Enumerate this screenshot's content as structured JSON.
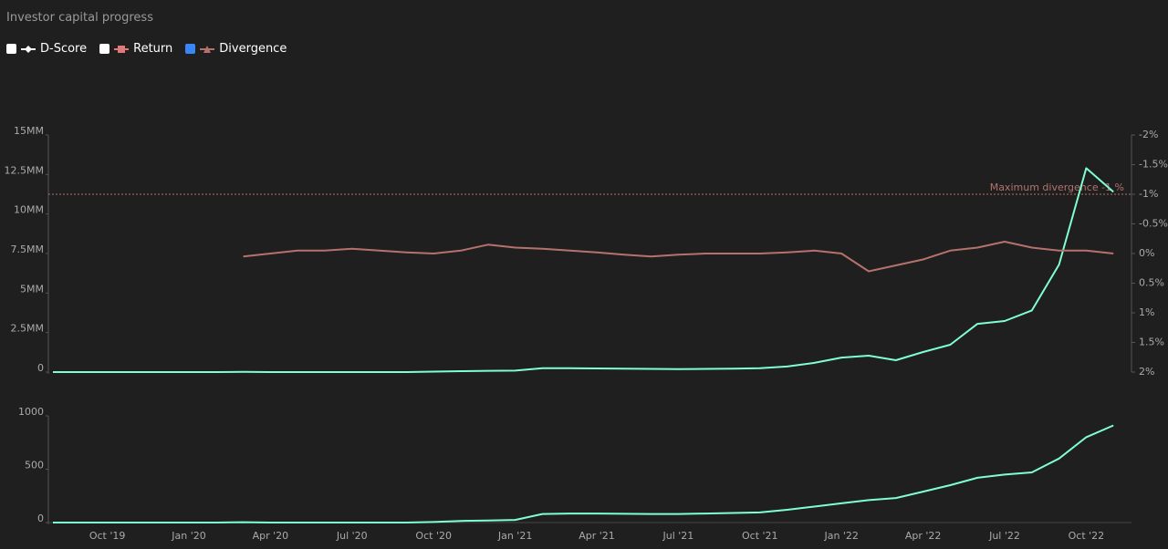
{
  "title": "Investor capital progress",
  "legend": [
    {
      "label": "D-Score",
      "checked": false,
      "color": "#ffffff"
    },
    {
      "label": "Return",
      "checked": false,
      "color": "#e07a7a"
    },
    {
      "label": "Divergence",
      "checked": true,
      "color": "#b5726c"
    }
  ],
  "chart_data": [
    {
      "type": "line",
      "ylim": [
        0,
        15000000
      ],
      "yticks": [
        {
          "value": 0,
          "label": "0"
        },
        {
          "value": 2500000,
          "label": "2.5MM"
        },
        {
          "value": 5000000,
          "label": "5MM"
        },
        {
          "value": 7500000,
          "label": "7.5MM"
        },
        {
          "value": 10000000,
          "label": "10MM"
        },
        {
          "value": 12500000,
          "label": "12.5MM"
        },
        {
          "value": 15000000,
          "label": "15MM"
        }
      ],
      "y2lim": [
        2,
        -2
      ],
      "y2ticks": [
        {
          "value": 2,
          "label": "2%"
        },
        {
          "value": 1.5,
          "label": "1.5%"
        },
        {
          "value": 1,
          "label": "1%"
        },
        {
          "value": 0.5,
          "label": "0.5%"
        },
        {
          "value": 0,
          "label": "0%"
        },
        {
          "value": -0.5,
          "label": "-0.5%"
        },
        {
          "value": -1,
          "label": "-1%"
        },
        {
          "value": -1.5,
          "label": "-1.5%"
        },
        {
          "value": -2,
          "label": "-2%"
        }
      ],
      "annotation": {
        "text": "Maximum divergence -1 %",
        "value": -1,
        "color": "#b5726c"
      },
      "series": [
        {
          "color": "#7fffd0",
          "values": [
            0,
            0,
            0,
            0,
            0,
            0,
            0,
            20000,
            0,
            0,
            0,
            0,
            0,
            0,
            30000,
            60000,
            80000,
            90000,
            250000,
            240000,
            230000,
            220000,
            200000,
            190000,
            200000,
            220000,
            250000,
            350000,
            580000,
            920000,
            1040000,
            750000,
            1270000,
            1730000,
            3050000,
            3230000,
            3900000,
            6800000,
            12900000,
            11400000
          ]
        },
        {
          "color": "#b5726c",
          "axis": "y2",
          "values": [
            null,
            null,
            null,
            null,
            null,
            null,
            null,
            0.05,
            0,
            -0.05,
            -0.05,
            -0.08,
            -0.05,
            -0.02,
            0,
            -0.05,
            -0.15,
            -0.1,
            -0.08,
            -0.05,
            -0.02,
            0.02,
            0.05,
            0.02,
            0,
            0,
            0,
            -0.02,
            -0.05,
            0,
            0.3,
            0.2,
            0.1,
            -0.05,
            -0.1,
            -0.2,
            -0.1,
            -0.05,
            -0.05,
            0
          ]
        }
      ]
    },
    {
      "type": "line",
      "ylim": [
        0,
        1000
      ],
      "yticks": [
        0,
        500,
        1000
      ],
      "categories": [
        null,
        null,
        "Oct '19",
        null,
        null,
        "Jan '20",
        null,
        null,
        "Apr '20",
        null,
        null,
        "Jul '20",
        null,
        null,
        "Oct '20",
        null,
        null,
        "Jan '21",
        null,
        null,
        "Apr '21",
        null,
        null,
        "Jul '21",
        null,
        null,
        "Oct '21",
        null,
        null,
        "Jan '22",
        null,
        null,
        "Apr '22",
        null,
        null,
        "Jul '22",
        null,
        null,
        "Oct '22",
        null
      ],
      "series": [
        {
          "color": "#7fffd0",
          "values": [
            0,
            0,
            0,
            0,
            0,
            0,
            0,
            3,
            0,
            0,
            0,
            0,
            0,
            0,
            5,
            15,
            20,
            25,
            80,
            85,
            85,
            82,
            80,
            80,
            85,
            90,
            95,
            120,
            150,
            180,
            210,
            230,
            290,
            350,
            420,
            450,
            470,
            600,
            800,
            910
          ]
        }
      ]
    }
  ]
}
